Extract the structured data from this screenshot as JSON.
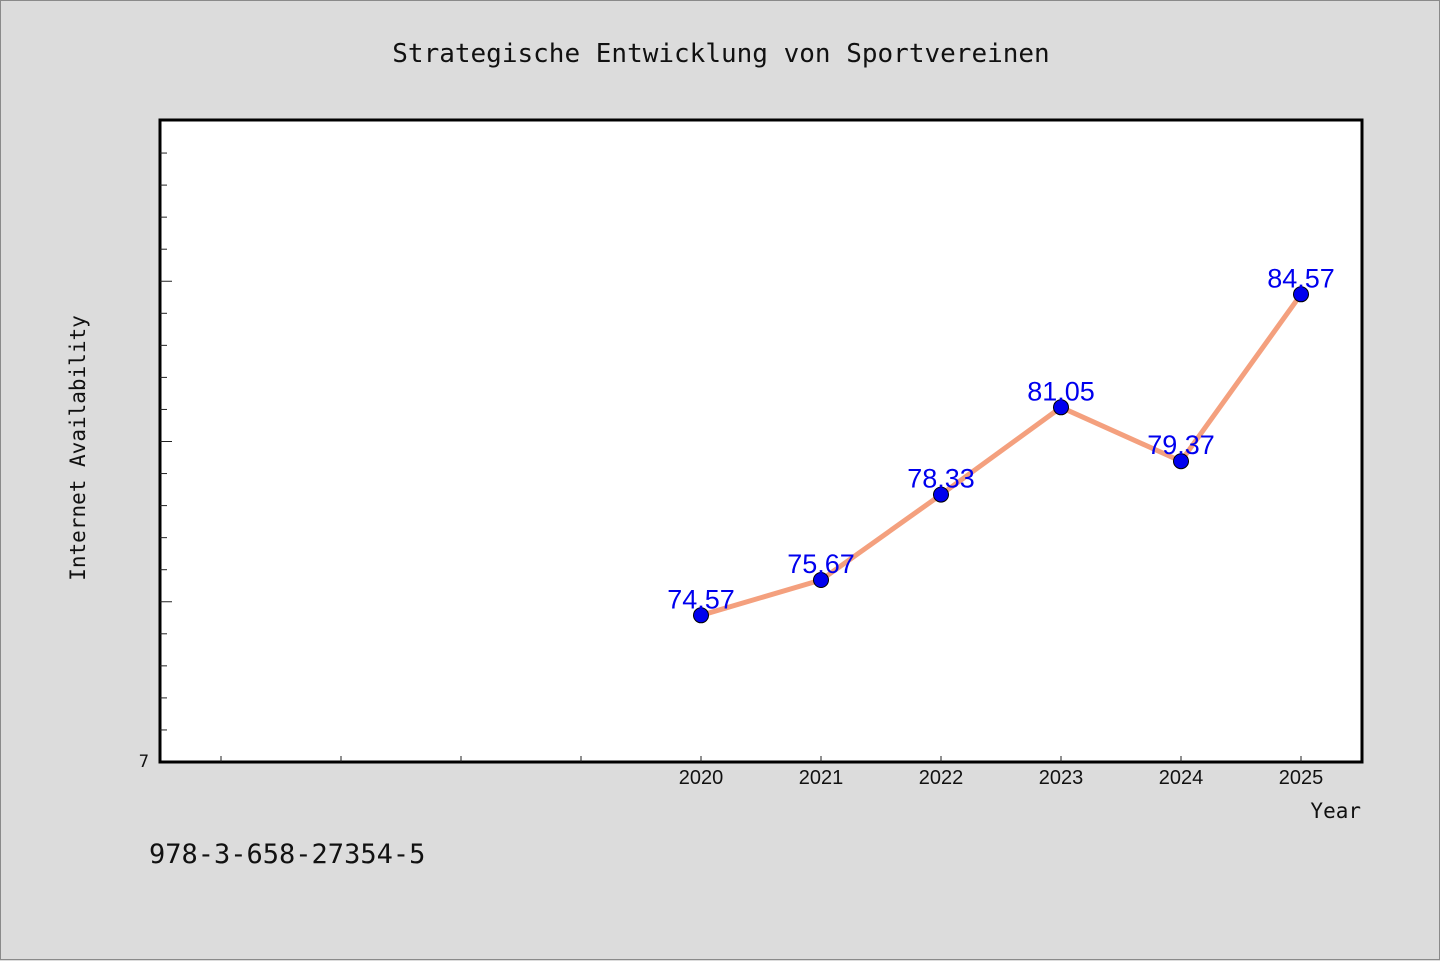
{
  "chart_data": {
    "type": "line",
    "title": "Strategische Entwicklung von Sportvereinen",
    "xlabel": "Year",
    "ylabel": "Internet Availability",
    "x": [
      "2020",
      "2021",
      "2022",
      "2023",
      "2024",
      "2025"
    ],
    "series": [
      {
        "values": [
          74.57,
          75.67,
          78.33,
          81.05,
          79.37,
          84.57
        ]
      }
    ],
    "data_labels": [
      "74.57",
      "75.67",
      "78.33",
      "81.05",
      "79.37",
      "84.57"
    ],
    "y_tick_label": "7",
    "ylim": [
      70,
      90
    ],
    "grid": false,
    "line_color": "#f4a07e",
    "marker_color": "#0000ee",
    "label_color": "#0000ee"
  },
  "footer": {
    "isbn": "978-3-658-27354-5"
  }
}
